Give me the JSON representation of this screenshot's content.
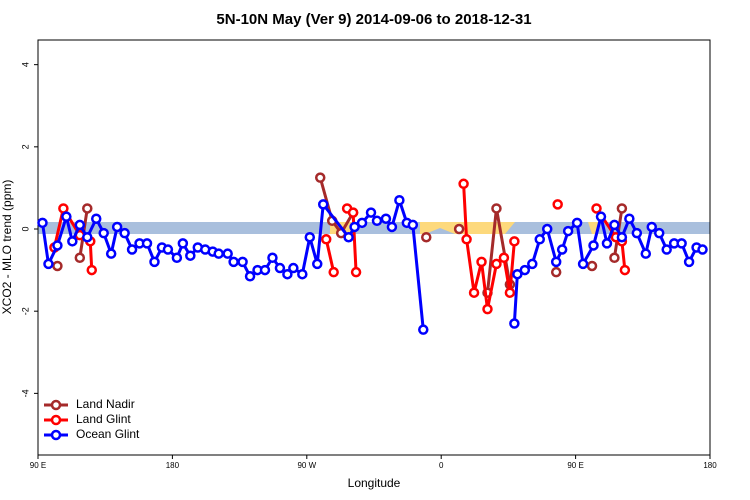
{
  "chart_data": {
    "type": "line",
    "title": "5N-10N May (Ver 9)   2014-09-06 to 2018-12-31",
    "xlabel": "Longitude",
    "ylabel": "XCO2 - MLO trend (ppm)",
    "xlim": [
      90,
      540
    ],
    "xticks": [
      {
        "value": 90,
        "label": "90 E"
      },
      {
        "value": 180,
        "label": "180"
      },
      {
        "value": 270,
        "label": "90 W"
      },
      {
        "value": 360,
        "label": "0"
      },
      {
        "value": 450,
        "label": "90 E"
      },
      {
        "value": 540,
        "label": "180"
      }
    ],
    "ylim": [
      -5.5,
      4.6
    ],
    "yticks": [
      -4,
      -2,
      0,
      2,
      4
    ],
    "legend": "lower left",
    "series": [
      {
        "name": "Land Nadir",
        "color": "#a52a2a",
        "x": [
          103,
          null,
          118,
          123,
          null,
          279,
          287,
          293,
          301,
          null,
          350,
          null,
          372,
          null,
          391,
          397,
          406,
          null,
          437,
          null,
          461,
          null,
          476,
          481
        ],
        "values": [
          -0.9,
          null,
          -0.7,
          0.5,
          null,
          1.25,
          0.2,
          -0.1,
          0.4,
          null,
          -0.2,
          null,
          0.0,
          null,
          -1.55,
          0.5,
          -1.35,
          null,
          -1.05,
          null,
          -0.9,
          null,
          -0.7,
          0.5
        ]
      },
      {
        "name": "Land Glint",
        "color": "#ff0000",
        "x": [
          101,
          107,
          118,
          125,
          126,
          null,
          283,
          288,
          null,
          297,
          301,
          303,
          null,
          375,
          377,
          382,
          387,
          391,
          397,
          402,
          406,
          409,
          null,
          438,
          null,
          464,
          477,
          481,
          483
        ],
        "values": [
          -0.45,
          0.5,
          -0.15,
          -0.3,
          -1.0,
          null,
          -0.25,
          -1.05,
          null,
          0.5,
          0.4,
          -1.05,
          null,
          1.1,
          -0.25,
          -1.55,
          -0.8,
          -1.95,
          -0.85,
          -0.7,
          -1.55,
          -0.3,
          null,
          0.6,
          null,
          0.5,
          -0.2,
          -0.3,
          -1.0
        ]
      },
      {
        "name": "Ocean Glint",
        "color": "#0000ff",
        "x": [
          93,
          97,
          103,
          109,
          113,
          118,
          123,
          129,
          134,
          139,
          143,
          148,
          153,
          158,
          163,
          168,
          173,
          177,
          183,
          187,
          192,
          197,
          202,
          207,
          211,
          217,
          221,
          227,
          232,
          237,
          242,
          247,
          252,
          257,
          261,
          267,
          272,
          277,
          281,
          298,
          302,
          307,
          313,
          317,
          323,
          327,
          332,
          337,
          341,
          348,
          null,
          409,
          411,
          416,
          421,
          426,
          431,
          437,
          441,
          445,
          451,
          455,
          462,
          467,
          471,
          476,
          481,
          486,
          491,
          497,
          501,
          506,
          511,
          516,
          521,
          526,
          531,
          535
        ],
        "values": [
          0.15,
          -0.85,
          -0.4,
          0.3,
          -0.3,
          0.1,
          -0.2,
          0.25,
          -0.1,
          -0.6,
          0.05,
          -0.1,
          -0.5,
          -0.35,
          -0.35,
          -0.8,
          -0.45,
          -0.5,
          -0.7,
          -0.35,
          -0.65,
          -0.45,
          -0.5,
          -0.55,
          -0.6,
          -0.6,
          -0.8,
          -0.8,
          -1.15,
          -1.0,
          -1.0,
          -0.7,
          -0.95,
          -1.1,
          -0.95,
          -1.1,
          -0.2,
          -0.85,
          0.6,
          -0.2,
          0.05,
          0.15,
          0.4,
          0.2,
          0.25,
          0.05,
          0.7,
          0.15,
          0.1,
          -2.45,
          null,
          -2.3,
          -1.1,
          -1.0,
          -0.85,
          -0.25,
          0.0,
          -0.8,
          -0.5,
          -0.05,
          0.15,
          -0.85,
          -0.4,
          0.3,
          -0.35,
          0.1,
          -0.2,
          0.25,
          -0.1,
          -0.6,
          0.05,
          -0.1,
          -0.5,
          -0.35,
          -0.35,
          -0.8,
          -0.45,
          -0.5
        ]
      }
    ]
  }
}
